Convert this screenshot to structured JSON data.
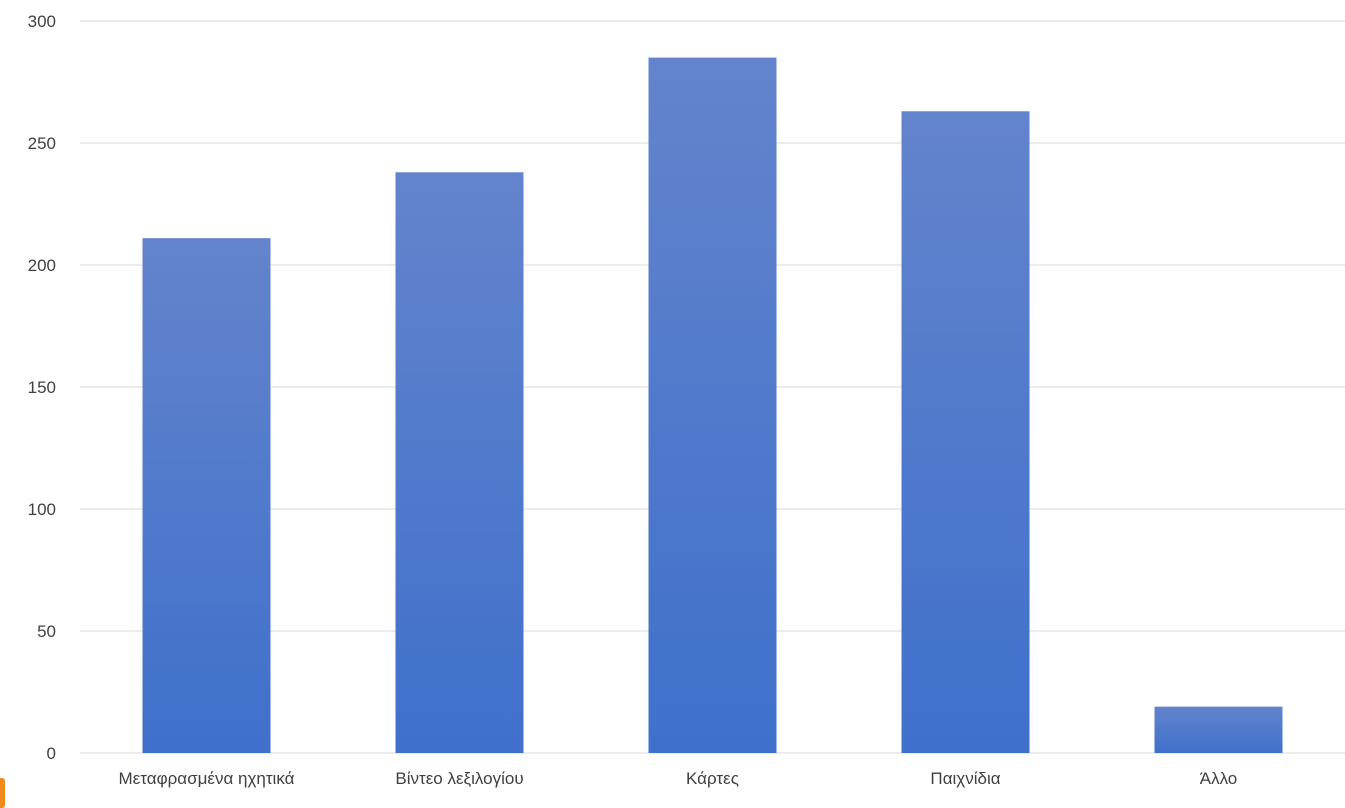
{
  "chart_data": {
    "type": "bar",
    "title": "",
    "xlabel": "",
    "ylabel": "",
    "categories": [
      "Μεταφρασμένα ηχητικά",
      "Βίντεο λεξιλογίου",
      "Κάρτες",
      "Παιχνίδια",
      "Άλλο"
    ],
    "values": [
      211,
      238,
      285,
      263,
      19
    ],
    "ylim": [
      0,
      300
    ],
    "yticks": [
      "0",
      "50",
      "100",
      "150",
      "200",
      "250",
      "300"
    ],
    "grid": true,
    "legend": "none",
    "bar_color_top": "#6384cc",
    "bar_color_bottom": "#3f70cb",
    "edge_accent_color": "#f08a1c"
  }
}
